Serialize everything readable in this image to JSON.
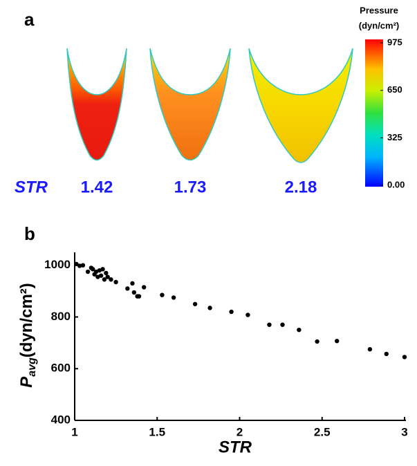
{
  "panel_a": {
    "label": "a",
    "colorbar_title": "Pressure",
    "colorbar_unit": "(dyn/cm²)",
    "colorbar_ticks": [
      975,
      650,
      325,
      {
        "value": 0,
        "label": "0.00"
      }
    ],
    "str_label": "STR",
    "str_values": [
      1.42,
      1.73,
      2.18
    ]
  },
  "chart_data": {
    "type": "scatter",
    "panel_label": "b",
    "xlabel": "STR",
    "ylabel": "P",
    "ylabel_sub": "avg",
    "ylabel_unit": "(dyn/cm²)",
    "color": "#000000",
    "xlim": [
      1,
      3
    ],
    "xticks": [
      1,
      1.5,
      2,
      2.5,
      3
    ],
    "ylim": [
      400,
      1050
    ],
    "yticks": [
      400,
      600,
      800,
      1000
    ],
    "series": [
      {
        "name": null,
        "x": [
          1.01,
          1.03,
          1.05,
          1.08,
          1.1,
          1.11,
          1.12,
          1.13,
          1.14,
          1.15,
          1.16,
          1.17,
          1.18,
          1.19,
          1.2,
          1.22,
          1.25,
          1.32,
          1.35,
          1.36,
          1.38,
          1.39,
          1.42,
          1.53,
          1.6,
          1.73,
          1.82,
          1.95,
          2.05,
          2.18,
          2.26,
          2.36,
          2.47,
          2.59,
          2.79,
          2.89,
          3.0
        ],
        "values": [
          1005,
          998,
          1000,
          975,
          990,
          985,
          965,
          975,
          955,
          980,
          960,
          985,
          945,
          970,
          955,
          945,
          935,
          910,
          930,
          895,
          880,
          880,
          915,
          885,
          875,
          850,
          835,
          820,
          808,
          770,
          770,
          750,
          705,
          707,
          675,
          657,
          645
        ]
      }
    ]
  }
}
